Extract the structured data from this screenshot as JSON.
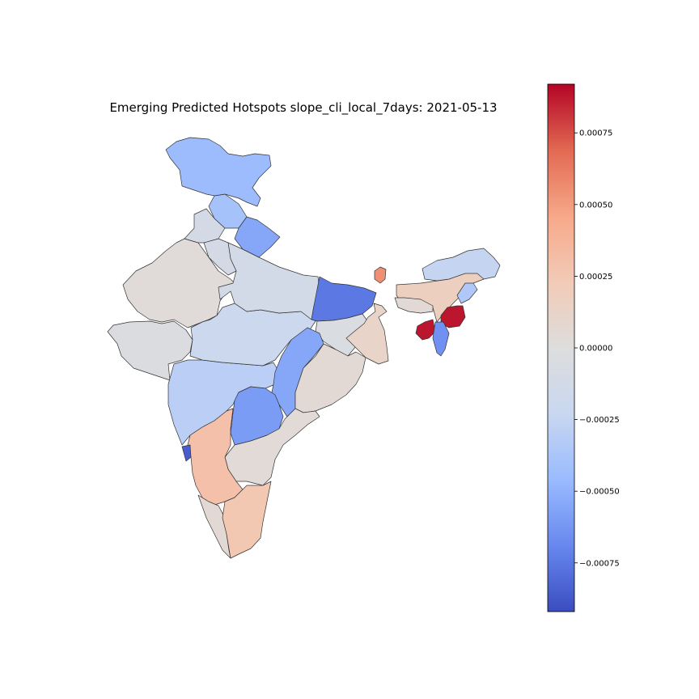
{
  "title": "Emerging Predicted Hotspots slope_cli_local_7days: 2021-05-13",
  "colormap": {
    "name": "coolwarm",
    "min": -0.00092,
    "max": 0.00092,
    "stops": [
      "#3b4cc0",
      "#6788ee",
      "#9abbff",
      "#c9d7f0",
      "#dddddd",
      "#f2cbb7",
      "#f7a889",
      "#e26952",
      "#b40426"
    ]
  },
  "colorbar": {
    "ticks": [
      {
        "value": 0.00075,
        "label": "0.00075"
      },
      {
        "value": 0.0005,
        "label": "0.00050"
      },
      {
        "value": 0.00025,
        "label": "0.00025"
      },
      {
        "value": 0.0,
        "label": "0.00000"
      },
      {
        "value": -0.00025,
        "label": "−0.00025"
      },
      {
        "value": -0.0005,
        "label": "−0.00050"
      },
      {
        "value": -0.00075,
        "label": "−0.00075"
      }
    ]
  },
  "regions": [
    {
      "id": "jammu-kashmir",
      "value": -0.00045
    },
    {
      "id": "himachal-pradesh",
      "value": -0.0004
    },
    {
      "id": "uttarakhand",
      "value": -0.00055
    },
    {
      "id": "punjab",
      "value": -0.0001
    },
    {
      "id": "haryana",
      "value": -0.0001
    },
    {
      "id": "rajasthan",
      "value": 3e-05
    },
    {
      "id": "uttar-pradesh",
      "value": -0.00012
    },
    {
      "id": "bihar",
      "value": -0.00075
    },
    {
      "id": "gujarat",
      "value": -3e-05
    },
    {
      "id": "madhya-pradesh",
      "value": -0.0002
    },
    {
      "id": "jharkhand",
      "value": -5e-05
    },
    {
      "id": "west-bengal",
      "value": 0.00012
    },
    {
      "id": "chhattisgarh",
      "value": -0.00055
    },
    {
      "id": "odisha",
      "value": 5e-05
    },
    {
      "id": "maharashtra",
      "value": -0.0003
    },
    {
      "id": "telangana",
      "value": -0.0006
    },
    {
      "id": "andhra-pradesh",
      "value": 4e-05
    },
    {
      "id": "goa",
      "value": -0.00085
    },
    {
      "id": "karnataka",
      "value": 0.0003
    },
    {
      "id": "kerala",
      "value": 5e-05
    },
    {
      "id": "tamil-nadu",
      "value": 0.00025
    },
    {
      "id": "sikkim",
      "value": 0.00055
    },
    {
      "id": "arunachal-pradesh",
      "value": -0.00025
    },
    {
      "id": "assam",
      "value": 0.00018
    },
    {
      "id": "meghalaya",
      "value": 5e-05
    },
    {
      "id": "nagaland",
      "value": -0.00035
    },
    {
      "id": "manipur",
      "value": 0.00088
    },
    {
      "id": "tripura",
      "value": 0.00088
    },
    {
      "id": "mizoram",
      "value": -0.00065
    }
  ]
}
